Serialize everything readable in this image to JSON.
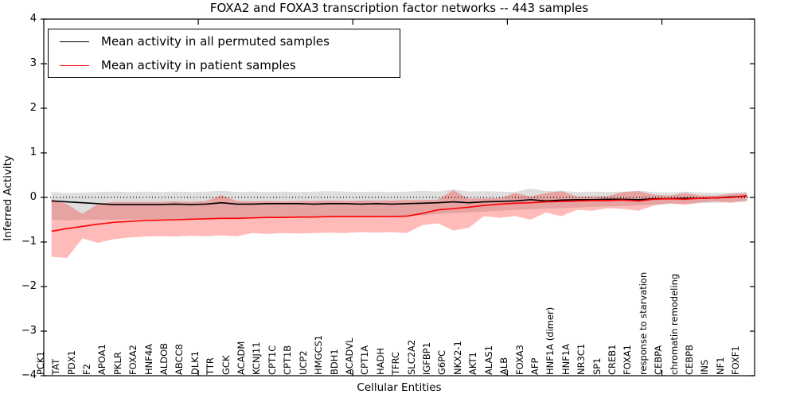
{
  "chart_data": {
    "type": "line",
    "title": "FOXA2 and FOXA3 transcription factor networks -- 443 samples",
    "xlabel": "Cellular Entities",
    "ylabel": "Inferred Activity",
    "ylim": [
      -4,
      4
    ],
    "yticks": [
      -4,
      -3,
      -2,
      -1,
      0,
      1,
      2,
      3,
      4
    ],
    "xticks_minor_positions": [
      10,
      20,
      30,
      40
    ],
    "grid": false,
    "zero_reference_line": 0,
    "legend_position": "upper left",
    "categories": [
      "PCK1",
      "TAT",
      "PDX1",
      "F2",
      "APOA1",
      "PKLR",
      "FOXA2",
      "HNF4A",
      "ALDOB",
      "ABCC8",
      "DLK1",
      "TTR",
      "GCK",
      "ACADM",
      "KCNJ11",
      "CPT1C",
      "CPT1B",
      "UCP2",
      "HMGCS1",
      "BDH1",
      "ACADVL",
      "CPT1A",
      "HADH",
      "TFRC",
      "SLC2A2",
      "IGFBP1",
      "G6PC",
      "NKX2-1",
      "AKT1",
      "ALAS1",
      "ALB",
      "FOXA3",
      "AFP",
      "HNF1A (dimer)",
      "HNF1A",
      "NR3C1",
      "SP1",
      "CREB1",
      "FOXA1",
      "response to starvation",
      "CEBPA",
      "chromatin remodeling",
      "CEBPB",
      "INS",
      "NF1",
      "FOXF1"
    ],
    "series": [
      {
        "name": "Mean activity in all permuted samples",
        "color": "#000000",
        "band_color": "#000000",
        "band_opacity": 0.13,
        "values": [
          -0.08,
          -0.1,
          -0.12,
          -0.14,
          -0.16,
          -0.16,
          -0.16,
          -0.16,
          -0.15,
          -0.16,
          -0.15,
          -0.12,
          -0.15,
          -0.15,
          -0.14,
          -0.14,
          -0.14,
          -0.15,
          -0.14,
          -0.14,
          -0.15,
          -0.14,
          -0.15,
          -0.14,
          -0.13,
          -0.12,
          -0.1,
          -0.12,
          -0.1,
          -0.09,
          -0.08,
          -0.05,
          -0.08,
          -0.06,
          -0.05,
          -0.05,
          -0.04,
          -0.04,
          -0.05,
          -0.03,
          -0.03,
          -0.02,
          -0.02,
          -0.01,
          0.01,
          0.03
        ],
        "band_upper": [
          0.12,
          0.1,
          0.11,
          0.12,
          0.13,
          0.12,
          0.13,
          0.12,
          0.13,
          0.12,
          0.13,
          0.15,
          0.12,
          0.13,
          0.12,
          0.13,
          0.12,
          0.13,
          0.14,
          0.13,
          0.12,
          0.13,
          0.12,
          0.13,
          0.15,
          0.13,
          0.18,
          0.13,
          0.14,
          0.13,
          0.12,
          0.2,
          0.14,
          0.15,
          0.12,
          0.13,
          0.12,
          0.13,
          0.15,
          0.12,
          0.11,
          0.13,
          0.11,
          0.1,
          0.11,
          0.12
        ],
        "band_lower": [
          -0.5,
          -0.52,
          -0.5,
          -0.5,
          -0.5,
          -0.49,
          -0.5,
          -0.49,
          -0.48,
          -0.48,
          -0.47,
          -0.45,
          -0.47,
          -0.46,
          -0.45,
          -0.45,
          -0.44,
          -0.44,
          -0.43,
          -0.43,
          -0.42,
          -0.42,
          -0.41,
          -0.41,
          -0.4,
          -0.37,
          -0.35,
          -0.34,
          -0.32,
          -0.3,
          -0.28,
          -0.27,
          -0.25,
          -0.24,
          -0.23,
          -0.21,
          -0.2,
          -0.19,
          -0.18,
          -0.16,
          -0.15,
          -0.14,
          -0.13,
          -0.12,
          -0.11,
          -0.1
        ]
      },
      {
        "name": "Mean activity in patient samples",
        "color": "#ff0000",
        "band_color": "#ff0000",
        "band_opacity": 0.27,
        "values": [
          -0.76,
          -0.7,
          -0.65,
          -0.6,
          -0.56,
          -0.54,
          -0.52,
          -0.51,
          -0.5,
          -0.49,
          -0.48,
          -0.47,
          -0.47,
          -0.46,
          -0.45,
          -0.45,
          -0.44,
          -0.44,
          -0.43,
          -0.43,
          -0.43,
          -0.43,
          -0.43,
          -0.42,
          -0.36,
          -0.28,
          -0.25,
          -0.22,
          -0.18,
          -0.15,
          -0.13,
          -0.12,
          -0.1,
          -0.09,
          -0.08,
          -0.07,
          -0.07,
          -0.06,
          -0.08,
          -0.04,
          -0.03,
          -0.04,
          -0.02,
          -0.01,
          0.0,
          0.04
        ],
        "band_upper": [
          -0.04,
          -0.15,
          -0.37,
          -0.15,
          -0.1,
          -0.1,
          -0.1,
          -0.1,
          -0.09,
          -0.1,
          -0.08,
          0.05,
          -0.08,
          -0.09,
          -0.08,
          -0.09,
          -0.08,
          -0.08,
          -0.07,
          -0.08,
          -0.07,
          -0.07,
          -0.07,
          -0.06,
          -0.06,
          -0.05,
          0.16,
          -0.03,
          -0.02,
          -0.02,
          0.1,
          0.02,
          0.1,
          0.14,
          0.02,
          0.02,
          0.03,
          0.12,
          0.14,
          0.06,
          0.04,
          0.1,
          0.04,
          0.04,
          0.08,
          0.1
        ],
        "band_lower": [
          -1.33,
          -1.36,
          -0.92,
          -1.02,
          -0.94,
          -0.9,
          -0.88,
          -0.87,
          -0.88,
          -0.86,
          -0.87,
          -0.85,
          -0.87,
          -0.8,
          -0.82,
          -0.8,
          -0.81,
          -0.8,
          -0.79,
          -0.8,
          -0.78,
          -0.79,
          -0.78,
          -0.8,
          -0.62,
          -0.58,
          -0.74,
          -0.68,
          -0.42,
          -0.46,
          -0.42,
          -0.5,
          -0.34,
          -0.42,
          -0.28,
          -0.3,
          -0.24,
          -0.26,
          -0.3,
          -0.18,
          -0.13,
          -0.17,
          -0.11,
          -0.09,
          -0.12,
          -0.07
        ]
      }
    ]
  }
}
